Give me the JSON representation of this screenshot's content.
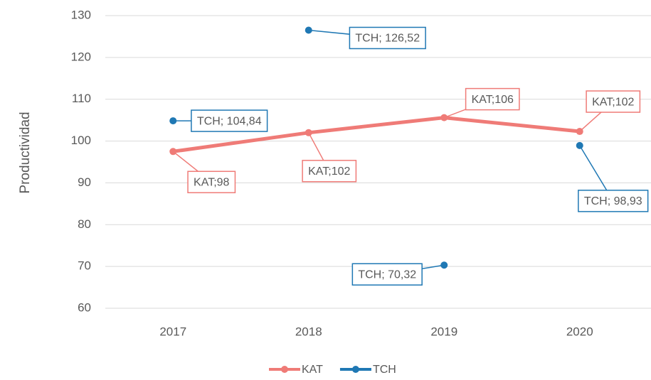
{
  "chart_data": {
    "type": "line",
    "y_label": "Productividad",
    "categories": [
      "2017",
      "2018",
      "2019",
      "2020"
    ],
    "series": [
      {
        "name": "KAT",
        "color": "#ef7b77",
        "values": [
          97.5,
          102,
          105.6,
          102.3
        ],
        "value_labels": [
          "KAT;98",
          "KAT;102",
          "KAT;106",
          "KAT;102"
        ]
      },
      {
        "name": "TCH",
        "color": "#1f78b4",
        "values": [
          104.84,
          126.52,
          70.32,
          98.93
        ],
        "value_labels": [
          "TCH; 104,84",
          "TCH; 126,52",
          "TCH; 70,32",
          "TCH; 98,93"
        ]
      }
    ],
    "ylim": [
      60,
      130
    ],
    "yticks": [
      60,
      70,
      80,
      90,
      100,
      110,
      120,
      130
    ],
    "grid": true,
    "legend": "bottom"
  }
}
